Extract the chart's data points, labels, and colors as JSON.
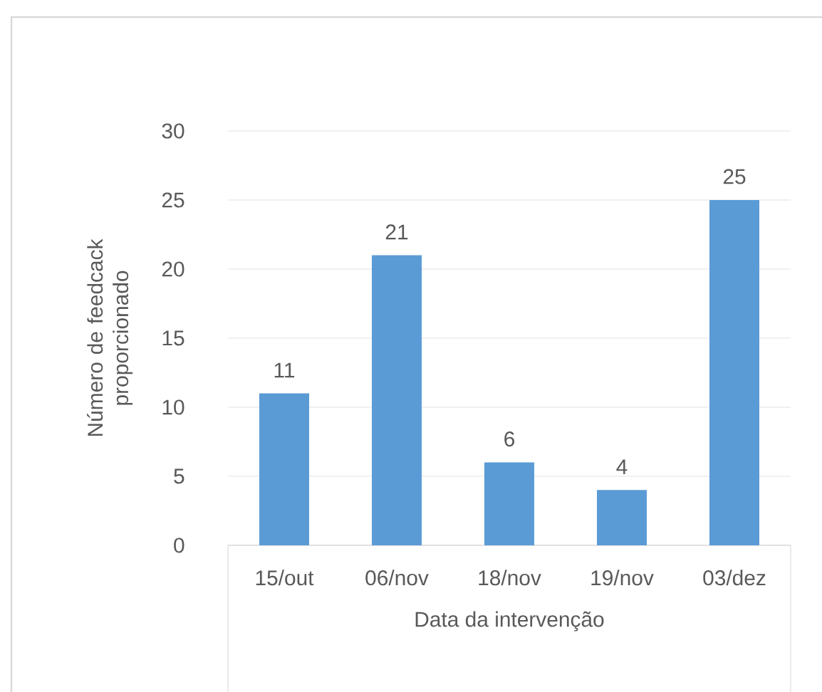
{
  "chart_data": {
    "type": "bar",
    "categories": [
      "15/out",
      "06/nov",
      "18/nov",
      "19/nov",
      "03/dez"
    ],
    "values": [
      11,
      21,
      6,
      4,
      25
    ],
    "color": "#5b9bd5",
    "xlabel": "Data da intervenção",
    "ylabel": "Número de feedcack proporcionado",
    "ylim": [
      0,
      30
    ],
    "yticks": [
      0,
      5,
      10,
      15,
      20,
      25,
      30
    ],
    "grid": "y",
    "data_labels": true
  }
}
